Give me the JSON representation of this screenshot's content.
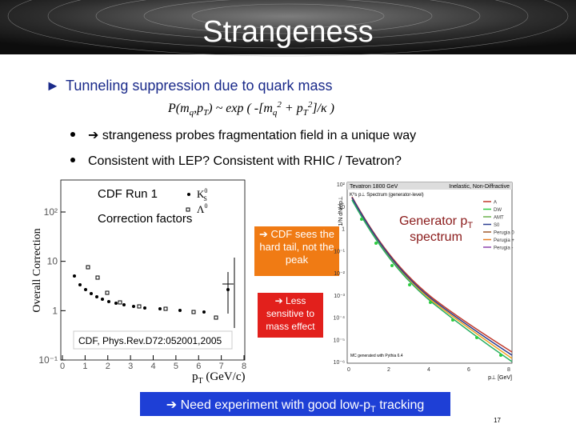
{
  "header": {
    "title": "Strangeness"
  },
  "bullets": {
    "marker": "►",
    "main": "Tunneling suppression due to quark mass",
    "formula": [
      "P(m",
      "q",
      ",p",
      "T",
      ") ~ exp ( -[m",
      "q",
      "2",
      " + p",
      "T",
      "2",
      "]/κ )"
    ],
    "sub": [
      "➔ strangeness probes fragmentation field in a unique way",
      "Consistent with LEP? Consistent with RHIC / Tevatron?"
    ]
  },
  "left_plot": {
    "labels": [
      "CDF Run 1",
      "Correction factors"
    ],
    "legend": [
      [
        "K",
        "0",
        "S"
      ],
      [
        "Λ",
        "0"
      ]
    ],
    "y_axis_title": "Overall Correction",
    "y_ticks": [
      "10²",
      "10",
      "1",
      "10⁻¹"
    ],
    "x_ticks": [
      "0",
      "1",
      "2",
      "3",
      "4",
      "5",
      "6",
      "7",
      "8"
    ],
    "x_axis_title": [
      "p",
      "T",
      " (GeV/c)"
    ],
    "caption": "CDF, Phys.Rev.D72:052001,2005"
  },
  "callouts": [
    "➔ CDF sees the hard tail, not the peak",
    "➔ Less sensitive to mass effect"
  ],
  "right_plot": {
    "title": [
      "Generator p",
      "T",
      " spectrum"
    ],
    "header_left": "Tevatron 1800 GeV",
    "header_right": "Inelastic, Non-Diffractive",
    "subheader": "K⁰s p⊥ Spectrum (generator-level)",
    "legend": [
      "A",
      "DW",
      "AMT",
      "S0",
      "Perugia 0",
      "Perugia +",
      "Perugia -"
    ],
    "y_axis_title": "1/N dN/dp⊥",
    "y_ticks": [
      "10²",
      "10",
      "1",
      "10⁻¹",
      "10⁻²",
      "10⁻³",
      "10⁻⁴",
      "10⁻⁵",
      "10⁻⁶"
    ],
    "x_ticks": [
      "0",
      "2",
      "4",
      "6",
      "8"
    ],
    "x_axis_title": "p⊥ [GeV]",
    "note": "MC generated with Pythia 6.4"
  },
  "footer": {
    "banner": [
      "➔ Need experiment with good low-p",
      "T",
      " tracking"
    ],
    "page": "17"
  }
}
